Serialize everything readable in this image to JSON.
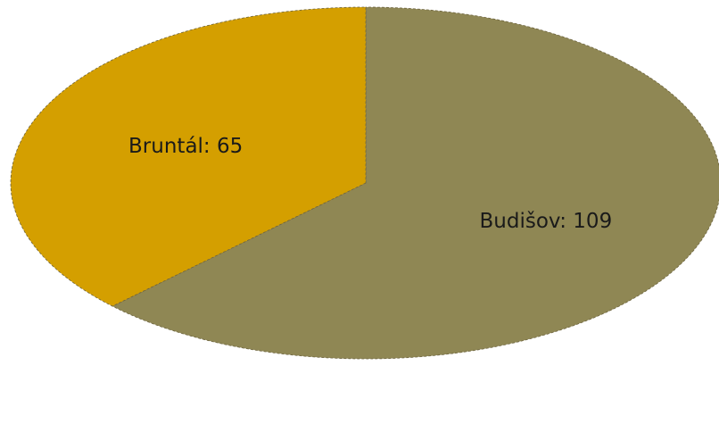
{
  "chart_data": {
    "type": "pie",
    "title": "",
    "categories": [
      "Budišov",
      "Bruntál"
    ],
    "values": [
      109,
      65
    ],
    "data_labels": [
      "Budišov:  109",
      "Bruntál:  65"
    ],
    "colors": [
      "#8f8754",
      "#d49f00"
    ],
    "legend": "none"
  }
}
